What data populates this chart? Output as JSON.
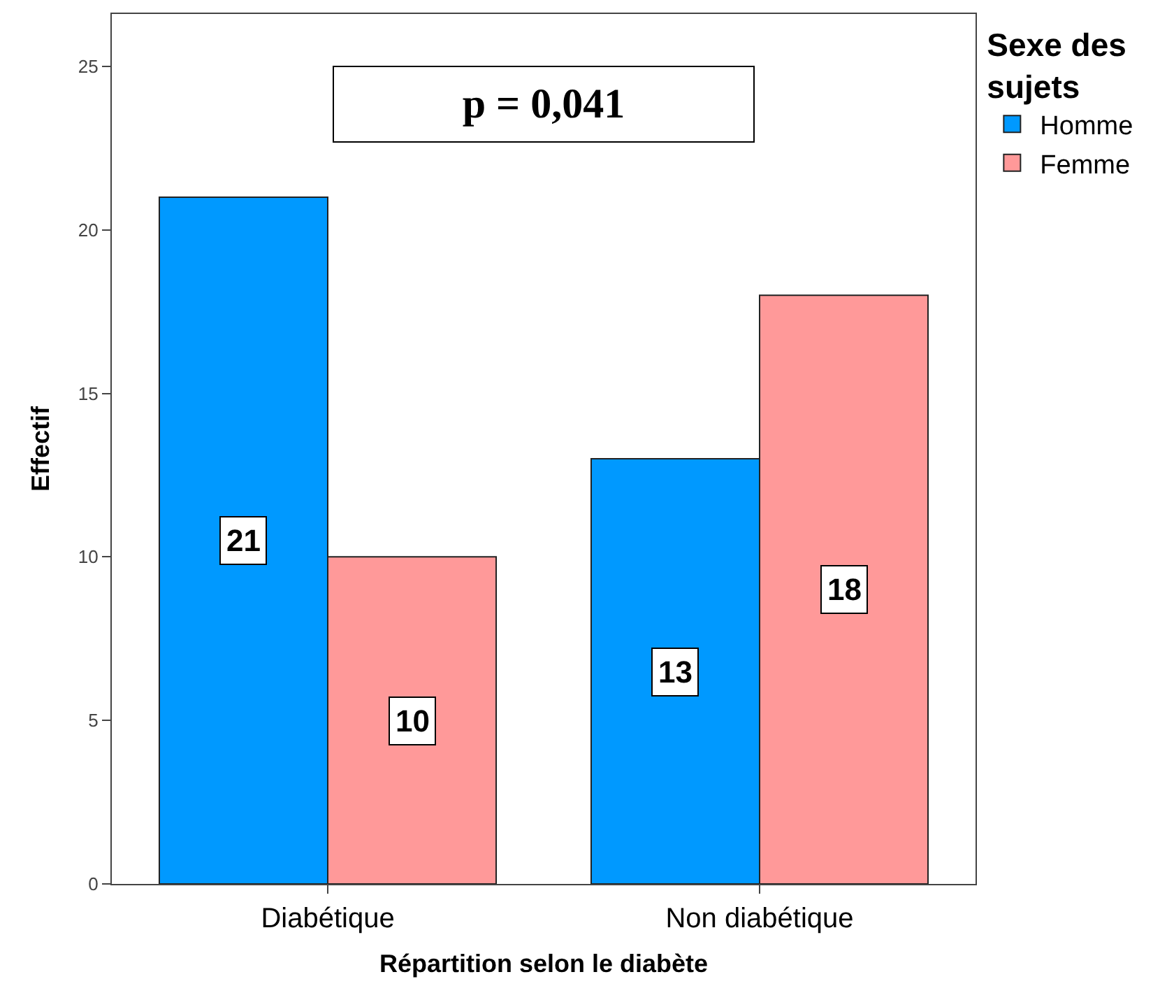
{
  "chart_data": {
    "type": "bar",
    "categories": [
      "Diabétique",
      "Non diabétique"
    ],
    "series": [
      {
        "name": "Homme",
        "color": "#0099ff",
        "values": [
          21,
          13
        ]
      },
      {
        "name": "Femme",
        "color": "#ff9999",
        "values": [
          10,
          18
        ]
      }
    ],
    "xlabel": "Répartition selon le diabète",
    "ylabel": "Effectif",
    "legend_title": "Sexe des sujets",
    "legend": "top right",
    "annotations": [
      "p = 0,041"
    ],
    "ylim": [
      0,
      26.6
    ],
    "yticks": [
      0,
      5,
      10,
      15,
      20,
      25
    ],
    "data_labels": true
  }
}
